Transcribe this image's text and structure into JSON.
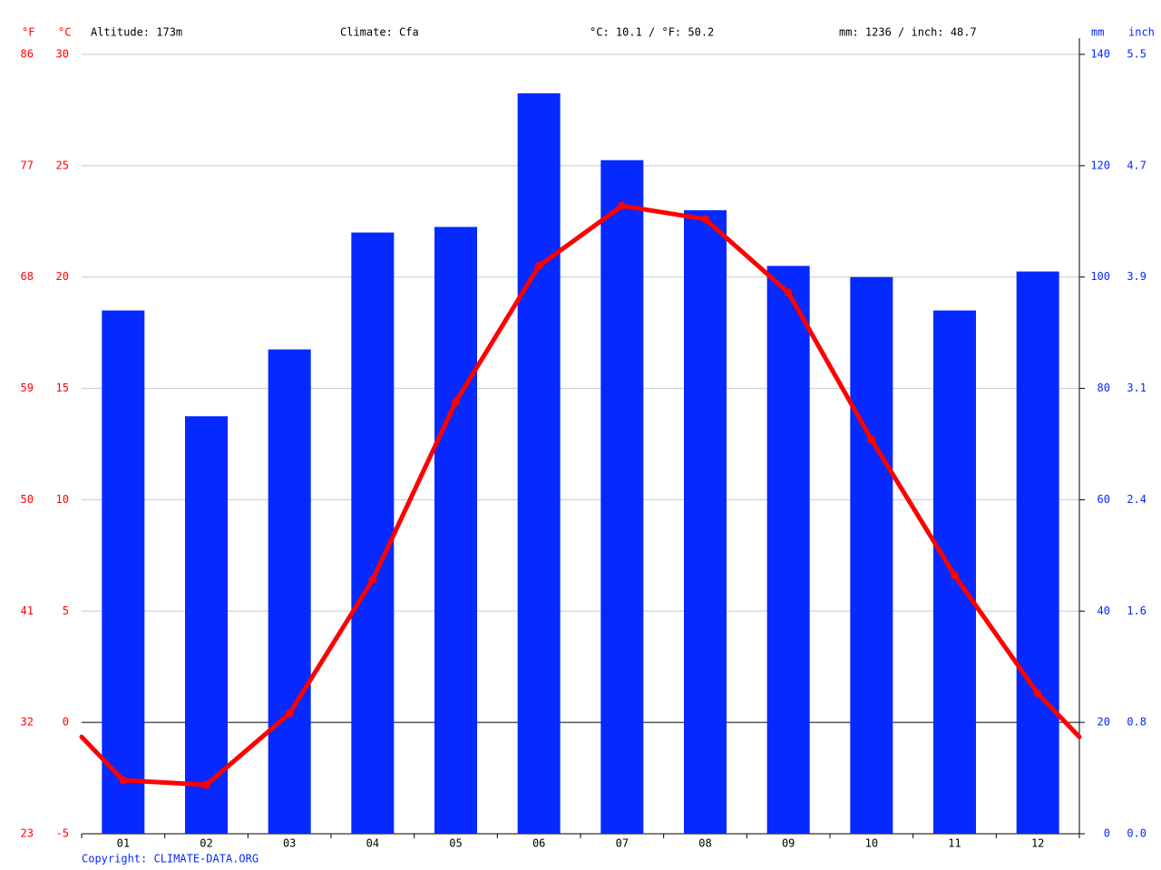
{
  "chart_data": {
    "type": "bar_line",
    "header": [
      "Altitude: 173m",
      "Climate: Cfa",
      "°C: 10.1 / °F: 50.2",
      "mm: 1236 / inch: 48.7"
    ],
    "footer": "Copyright: CLIMATE-DATA.ORG",
    "categories": [
      "01",
      "02",
      "03",
      "04",
      "05",
      "06",
      "07",
      "08",
      "09",
      "10",
      "11",
      "12"
    ],
    "series": [
      {
        "name": "mm",
        "type": "bar",
        "axis": "y2",
        "color": "#0529ff",
        "values": [
          94,
          75,
          87,
          108,
          109,
          133,
          121,
          112,
          102,
          100,
          94,
          101
        ]
      },
      {
        "name": "°C",
        "type": "line",
        "color": "#ff0000",
        "values": [
          -2.6,
          -2.8,
          0.4,
          6.4,
          14.4,
          20.5,
          23.2,
          22.6,
          19.3,
          12.7,
          6.6,
          1.3
        ]
      }
    ],
    "ylim": [
      -5,
      30
    ],
    "yticks": [
      -5,
      0,
      5,
      10,
      15,
      20,
      25,
      30
    ],
    "y2lim": [
      0,
      140
    ],
    "y2ticks": [
      0,
      20,
      40,
      60,
      80,
      100,
      120,
      140
    ],
    "fahrenheit_axis": {
      "label": "°F",
      "lim": [
        23,
        86
      ],
      "ticks": [
        23,
        32,
        41,
        50,
        59,
        68,
        77,
        86
      ]
    },
    "inch_axis": {
      "label": "inch",
      "lim": [
        0,
        5.512
      ],
      "ticks": [
        {
          "value": 0,
          "label": "0.0"
        },
        {
          "value": 0.787,
          "label": "0.8"
        },
        {
          "value": 1.575,
          "label": "1.6"
        },
        {
          "value": 2.362,
          "label": "2.4"
        },
        {
          "value": 3.15,
          "label": "3.1"
        },
        {
          "value": 3.937,
          "label": "3.9"
        },
        {
          "value": 4.724,
          "label": "4.7"
        },
        {
          "value": 5.512,
          "label": "5.5"
        }
      ]
    },
    "grid": true
  }
}
